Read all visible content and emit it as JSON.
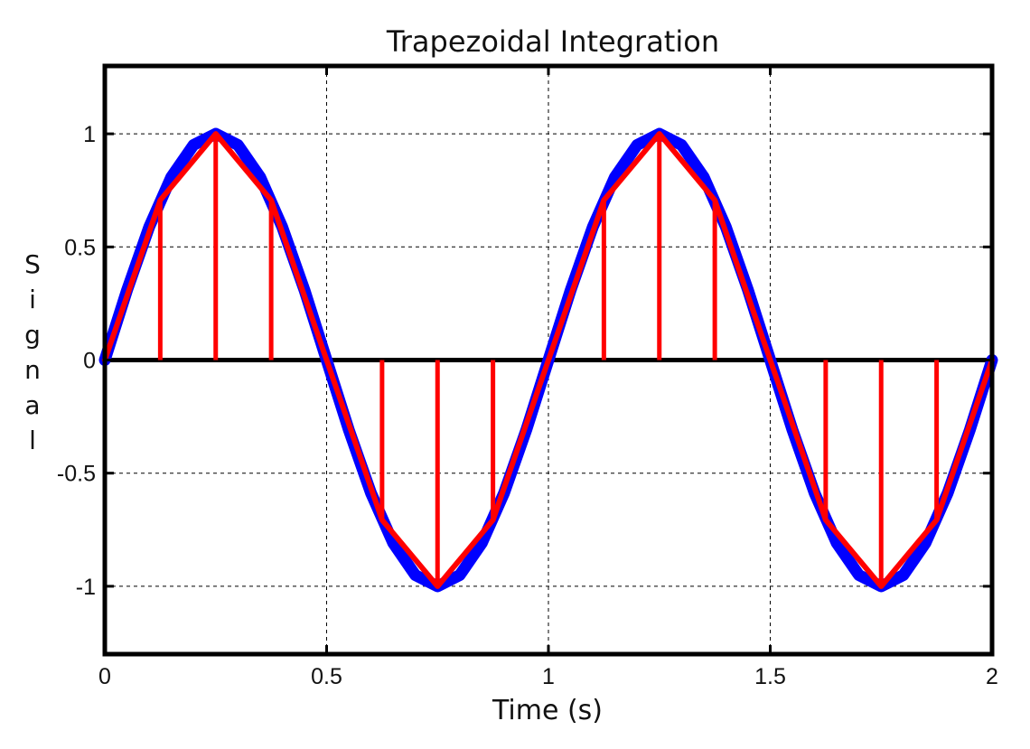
{
  "chart_data": {
    "type": "line",
    "title": "Trapezoidal Integration",
    "xlabel": "Time (s)",
    "ylabel": "Signal",
    "xlim": [
      0,
      2
    ],
    "ylim": [
      -1.3,
      1.3
    ],
    "xticks": [
      0,
      0.5,
      1,
      1.5,
      2
    ],
    "xtick_labels": [
      "0",
      "0.5",
      "1",
      "1.5",
      "2"
    ],
    "yticks": [
      -1,
      -0.5,
      0,
      0.5,
      1
    ],
    "ytick_labels": [
      "-1",
      "-0.5",
      "0",
      "0.5",
      "1"
    ],
    "grid": true,
    "legend": false,
    "series": [
      {
        "kind": "curve",
        "color": "#0000ff",
        "x": [
          0,
          0.05,
          0.1,
          0.15,
          0.2,
          0.25,
          0.3,
          0.35,
          0.4,
          0.45,
          0.5,
          0.55,
          0.6,
          0.65,
          0.7,
          0.75,
          0.8,
          0.85,
          0.9,
          0.95,
          1,
          1.05,
          1.1,
          1.15,
          1.2,
          1.25,
          1.3,
          1.35,
          1.4,
          1.45,
          1.5,
          1.55,
          1.6,
          1.65,
          1.7,
          1.75,
          1.8,
          1.85,
          1.9,
          1.95,
          2
        ],
        "y": [
          0,
          0.309,
          0.588,
          0.809,
          0.951,
          1,
          0.951,
          0.809,
          0.588,
          0.309,
          0,
          -0.309,
          -0.588,
          -0.809,
          -0.951,
          -1,
          -0.951,
          -0.809,
          -0.588,
          -0.309,
          0,
          0.309,
          0.588,
          0.809,
          0.951,
          1,
          0.951,
          0.809,
          0.588,
          0.309,
          0,
          -0.309,
          -0.588,
          -0.809,
          -0.951,
          -1,
          -0.951,
          -0.809,
          -0.588,
          -0.309,
          0
        ]
      },
      {
        "kind": "trapezoids",
        "color": "#ff0000",
        "x": [
          0,
          0.125,
          0.25,
          0.375,
          0.5,
          0.625,
          0.75,
          0.875,
          1,
          1.125,
          1.25,
          1.375,
          1.5,
          1.625,
          1.75,
          1.875,
          2
        ],
        "y": [
          0,
          0.707,
          1,
          0.707,
          0,
          -0.707,
          -1,
          -0.707,
          0,
          0.707,
          1,
          0.707,
          0,
          -0.707,
          -1,
          -0.707,
          0
        ]
      }
    ],
    "colors": {
      "axes": "#000000",
      "grid": "#000000",
      "sine": "#0000ff",
      "trapezoid": "#ff0000"
    }
  }
}
